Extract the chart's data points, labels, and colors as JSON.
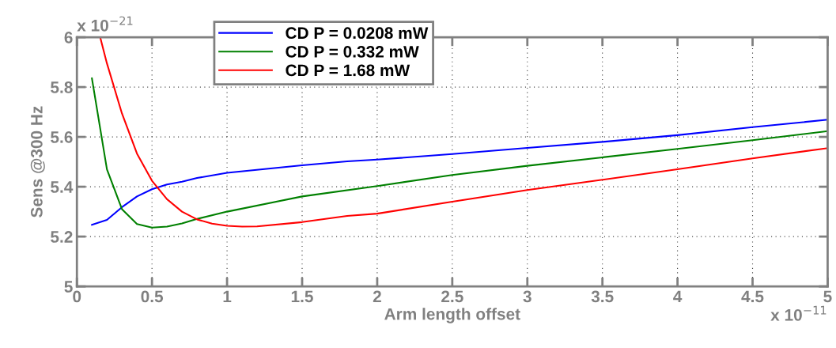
{
  "chart_data": {
    "type": "line",
    "xlabel": "Arm length offset",
    "ylabel": "Sens @300 Hz",
    "annotations": [
      "x 10$^{−21}$",
      "x 10$^{−11}$"
    ],
    "xlim": [
      0,
      5
    ],
    "xticks": [
      0,
      0.5,
      1,
      1.5,
      2,
      2.5,
      3,
      3.5,
      4,
      4.5,
      5
    ],
    "ylim": [
      5,
      6
    ],
    "yticks": [
      5,
      5.2,
      5.4,
      5.6,
      5.8,
      6
    ],
    "grid": true,
    "legend": "top left",
    "line_style": "solid",
    "marker": "none",
    "series": [
      {
        "name": "CD P = 0.0208 mW",
        "color": "#0000ff",
        "x": [
          0.1,
          0.2,
          0.3,
          0.4,
          0.5,
          0.6,
          0.7,
          0.8,
          1.0,
          1.5,
          1.8,
          2.0,
          2.5,
          3.0,
          3.5,
          4.0,
          4.5,
          5.0
        ],
        "values": [
          5.247,
          5.267,
          5.318,
          5.361,
          5.39,
          5.409,
          5.42,
          5.435,
          5.456,
          5.486,
          5.502,
          5.509,
          5.531,
          5.556,
          5.58,
          5.607,
          5.639,
          5.669
        ]
      },
      {
        "name": "CD P = 0.332 mW",
        "color": "#008000",
        "x": [
          0.1,
          0.2,
          0.3,
          0.4,
          0.5,
          0.6,
          0.7,
          0.8,
          1.0,
          1.5,
          2.0,
          2.5,
          3.0,
          3.5,
          4.0,
          4.5,
          5.0
        ],
        "values": [
          5.835,
          5.47,
          5.31,
          5.25,
          5.236,
          5.24,
          5.253,
          5.271,
          5.3,
          5.361,
          5.403,
          5.447,
          5.484,
          5.518,
          5.552,
          5.587,
          5.623
        ]
      },
      {
        "name": "CD P = 1.68 mW",
        "color": "#ff0000",
        "x": [
          0.155,
          0.2,
          0.3,
          0.4,
          0.5,
          0.6,
          0.7,
          0.8,
          0.9,
          1.0,
          1.1,
          1.2,
          1.5,
          1.8,
          2.0,
          2.5,
          3.0,
          3.5,
          4.0,
          4.5,
          5.0
        ],
        "values": [
          6.0,
          5.895,
          5.694,
          5.533,
          5.424,
          5.35,
          5.3,
          5.269,
          5.252,
          5.243,
          5.24,
          5.241,
          5.258,
          5.283,
          5.292,
          5.34,
          5.387,
          5.428,
          5.47,
          5.514,
          5.555
        ]
      }
    ]
  }
}
